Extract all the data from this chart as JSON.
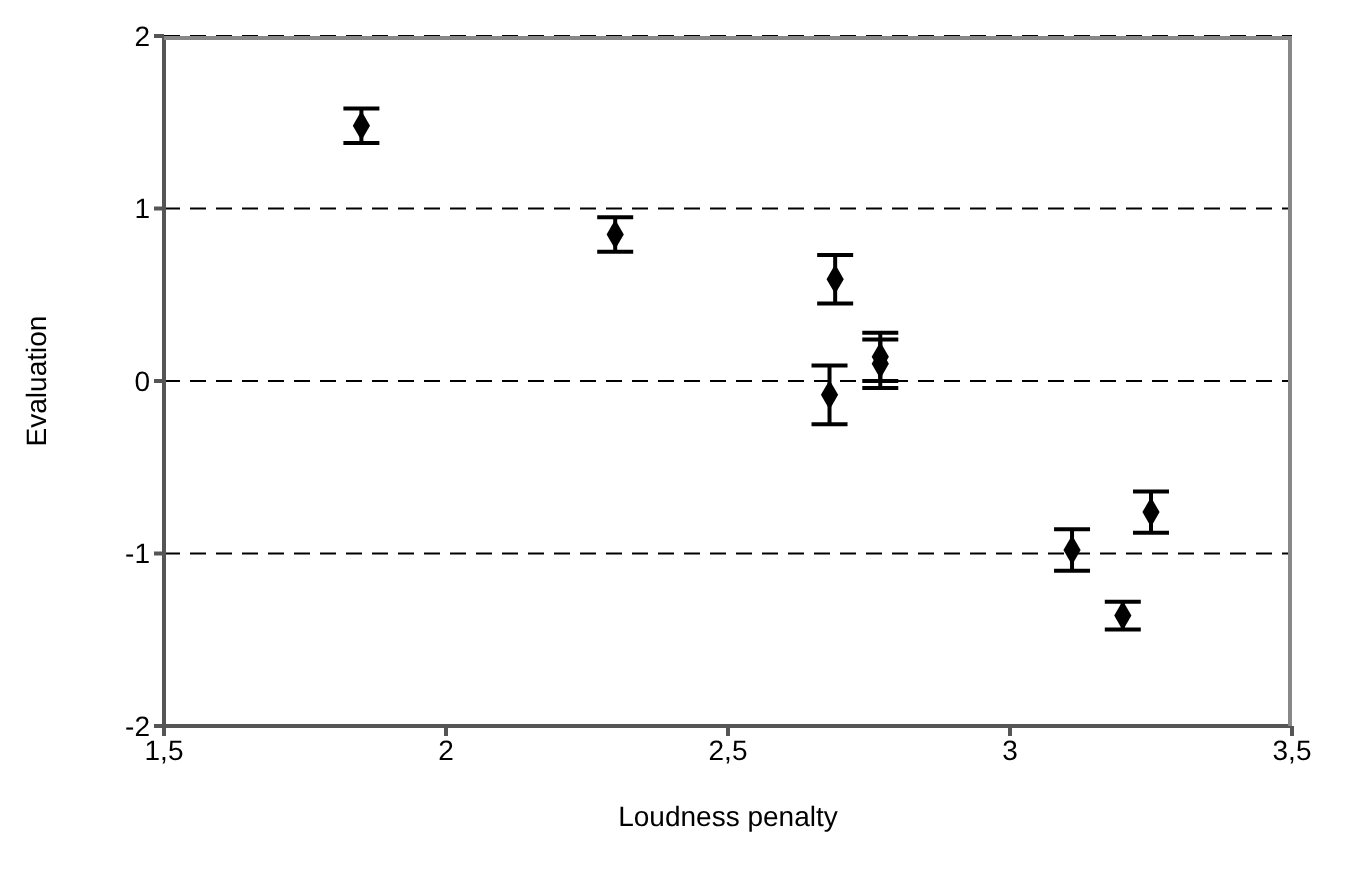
{
  "chart_data": {
    "type": "scatter",
    "xlabel": "Loudness penalty",
    "ylabel": "Evaluation",
    "x": [
      1.85,
      2.3,
      2.69,
      2.68,
      2.77,
      2.77,
      3.11,
      3.2,
      3.25
    ],
    "values": [
      1.48,
      0.85,
      0.59,
      -0.08,
      0.1,
      0.14,
      -0.98,
      -1.36,
      -0.76
    ],
    "errors": [
      0.1,
      0.1,
      0.14,
      0.17,
      0.14,
      0.14,
      0.12,
      0.08,
      0.12
    ],
    "color": "#000000",
    "marker": "diamond",
    "xlim": [
      1.5,
      3.5
    ],
    "xticks": [
      {
        "value": 1.5,
        "label": "1,5"
      },
      2,
      {
        "value": 2.5,
        "label": "2,5"
      },
      3,
      {
        "value": 3.5,
        "label": "3,5"
      }
    ],
    "ylim": [
      -2,
      2
    ],
    "yticks": [
      -2,
      -1,
      0,
      1,
      2
    ],
    "grid": "y"
  }
}
